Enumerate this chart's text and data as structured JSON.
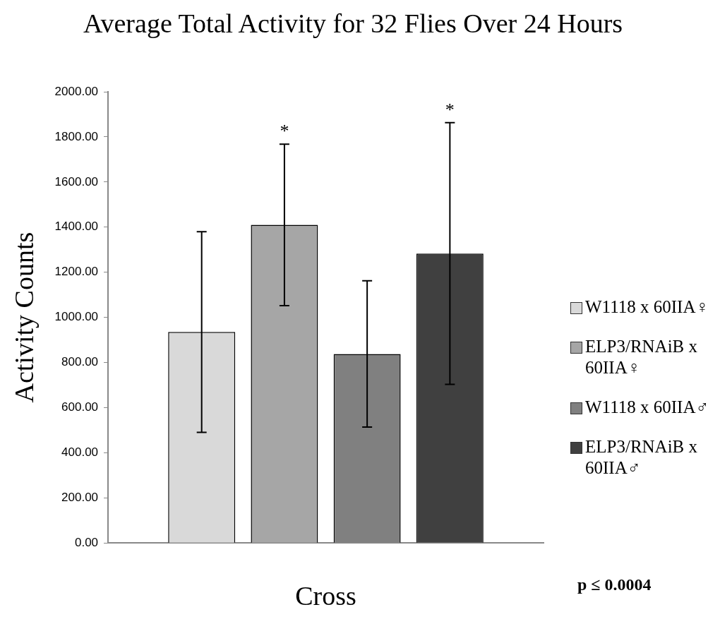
{
  "chart_data": {
    "type": "bar",
    "title": "Average Total Activity for 32 Flies Over 24 Hours",
    "xlabel": "Cross",
    "ylabel": "Activity Counts",
    "categories": [
      null
    ],
    "series": [
      {
        "name": "W1118 x 60IIA♀",
        "color": "#d9d9d9",
        "values": [
          935
        ],
        "errors": [
          445
        ]
      },
      {
        "name": "ELP3/RNAiB x 60IIA♀",
        "color": "#a6a6a6",
        "values": [
          1410
        ],
        "errors": [
          358
        ]
      },
      {
        "name": "W1118 x 60IIA♂",
        "color": "#808080",
        "values": [
          838
        ],
        "errors": [
          324
        ]
      },
      {
        "name": "ELP3/RNAiB x 60IIA♂",
        "color": "#404040",
        "values": [
          1283
        ],
        "errors": [
          580
        ]
      }
    ],
    "ylim": [
      0,
      2000
    ],
    "yticks": [
      {
        "value": 0,
        "label": "0.00"
      },
      {
        "value": 200,
        "label": "200.00"
      },
      {
        "value": 400,
        "label": "400.00"
      },
      {
        "value": 600,
        "label": "600.00"
      },
      {
        "value": 800,
        "label": "800.00"
      },
      {
        "value": 1000,
        "label": "1000.00"
      },
      {
        "value": 1200,
        "label": "1200.00"
      },
      {
        "value": 1400,
        "label": "1400.00"
      },
      {
        "value": 1600,
        "label": "1600.00"
      },
      {
        "value": 1800,
        "label": "1800.00"
      },
      {
        "value": 2000,
        "label": "2000.00"
      }
    ],
    "grid": false,
    "legend": "right",
    "annotations": [
      {
        "text": "*",
        "y": 1768
      },
      {
        "text": "*",
        "y": 1863
      },
      "p ≤ 0.0004"
    ]
  }
}
